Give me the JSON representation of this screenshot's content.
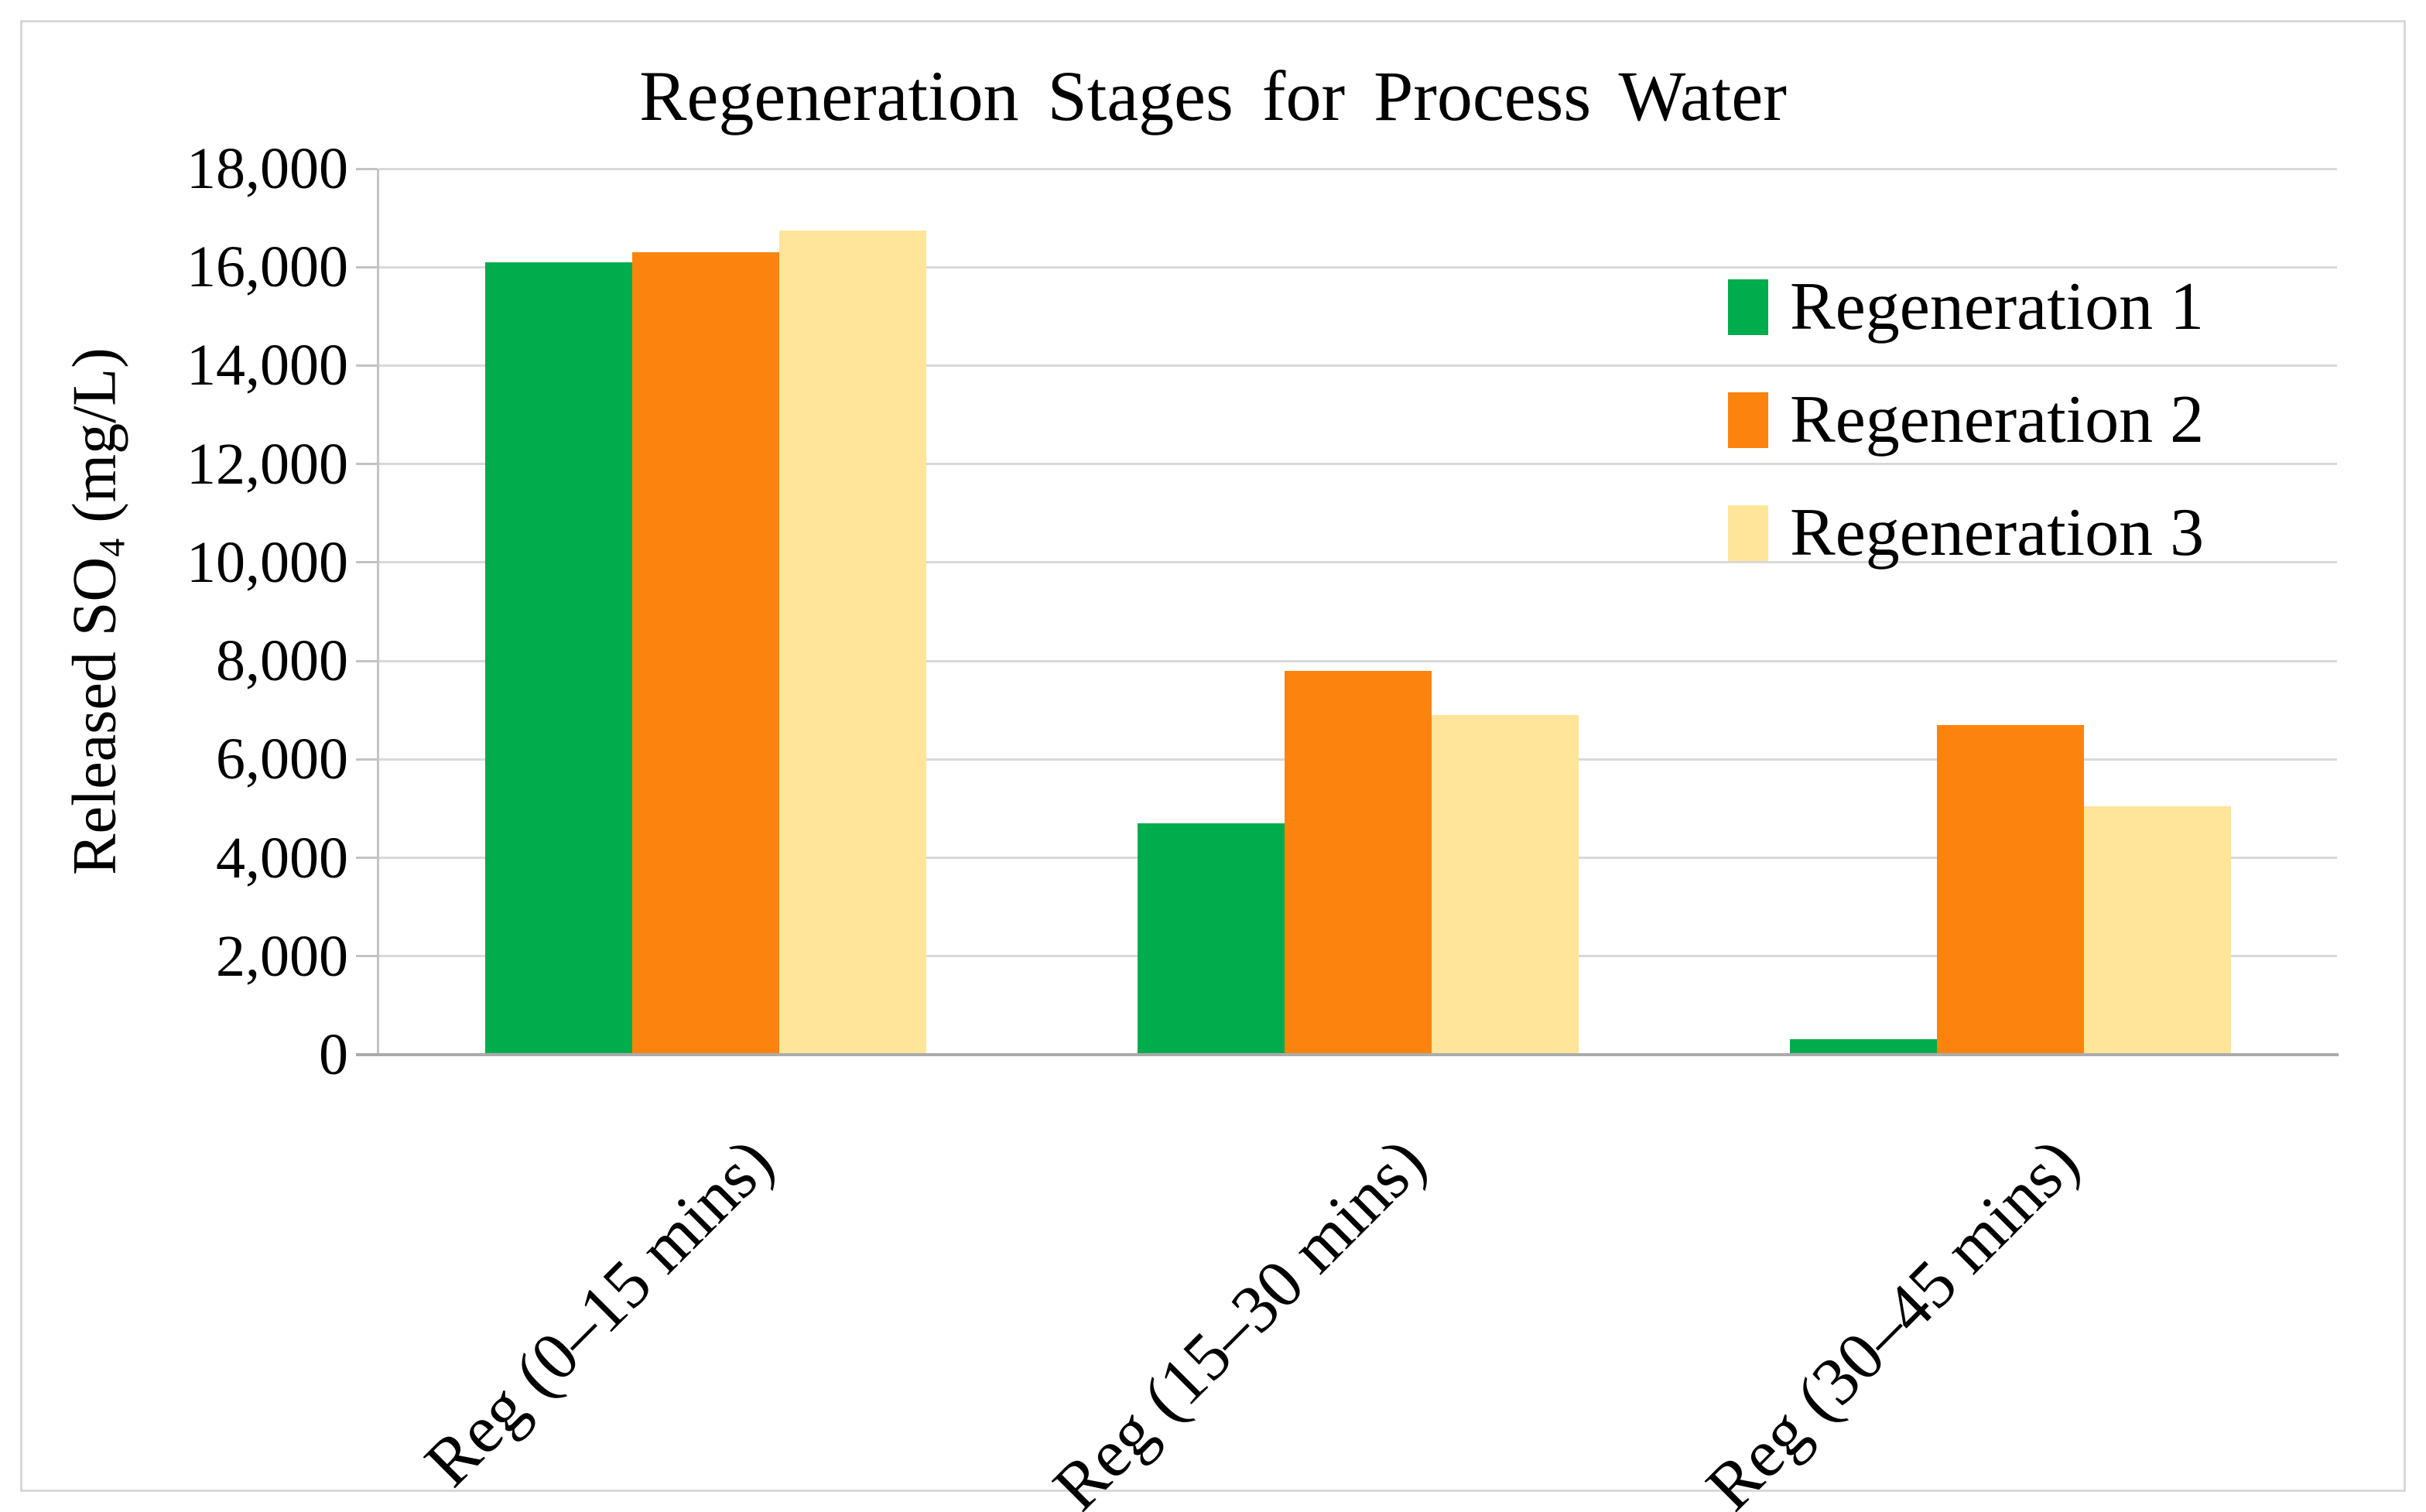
{
  "figure": {
    "title": "Regeneration Stages for Process Water"
  },
  "y_axis": {
    "title_pre": "Released SO",
    "title_sub": "4",
    "title_post": " (mg/L)"
  },
  "chart_data": {
    "type": "bar",
    "title": "Regeneration Stages for Process Water",
    "categories": [
      "Reg (0–15 mins)",
      "Reg (15–30 mins)",
      "Reg (30–45 mins)"
    ],
    "series": [
      {
        "name": "Regeneration 1",
        "color": "#00ac4c",
        "values": [
          16100,
          4700,
          320
        ]
      },
      {
        "name": "Regeneration 2",
        "color": "#fc840e",
        "values": [
          16300,
          7800,
          6700
        ]
      },
      {
        "name": "Regeneration 3",
        "color": "#ffe599",
        "values": [
          16750,
          6900,
          5050
        ]
      }
    ],
    "xlabel": "",
    "ylabel": "Released SO4 (mg/L)",
    "ylim": [
      0,
      18000
    ],
    "ytick_step": 2000,
    "ytick_labels": [
      "0",
      "2,000",
      "4,000",
      "6,000",
      "8,000",
      "10,000",
      "12,000",
      "14,000",
      "16,000",
      "18,000"
    ],
    "grid": true,
    "legend_position": "upper right",
    "colors": {
      "gridline": "#d9d9d9",
      "axis_line": "#c3c3c3",
      "baseline": "#ababab",
      "text": "#000000"
    }
  }
}
